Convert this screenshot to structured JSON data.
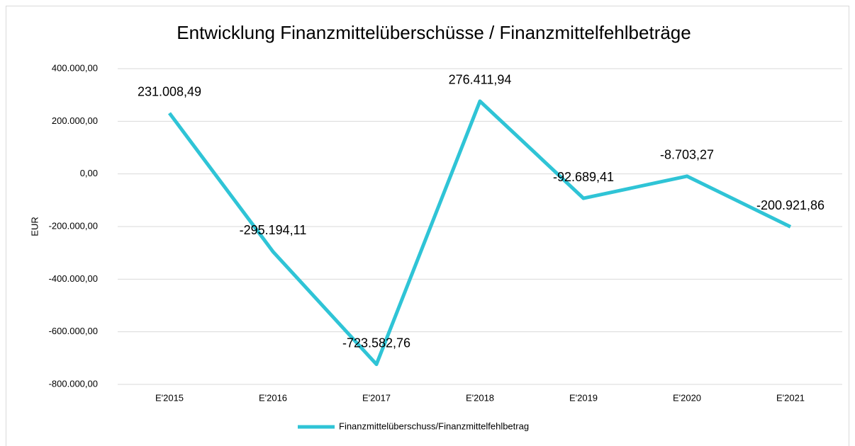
{
  "chart_data": {
    "type": "line",
    "title": "Entwicklung Finanzmittelüberschüsse / Finanzmittelfehlbeträge",
    "ylabel": "EUR",
    "categories": [
      "E'2015",
      "E'2016",
      "E'2017",
      "E'2018",
      "E'2019",
      "E'2020",
      "E'2021"
    ],
    "series": [
      {
        "name": "Finanzmittelüberschuss/Finanzmittelfehlbetrag",
        "color": "#2fc4d6",
        "values": [
          231008.49,
          -295194.11,
          -723582.76,
          276411.94,
          -92689.41,
          -8703.27,
          -200921.86
        ],
        "value_labels": [
          "231.008,49",
          "-295.194,11",
          "-723.582,76",
          "276.411,94",
          "-92.689,41",
          "-8.703,27",
          "-200.921,86"
        ]
      }
    ],
    "ylim": [
      -800000,
      400000
    ],
    "yticks": [
      {
        "value": -800000,
        "label": "-800.000,00"
      },
      {
        "value": -600000,
        "label": "-600.000,00"
      },
      {
        "value": -400000,
        "label": "-400.000,00"
      },
      {
        "value": -200000,
        "label": "-200.000,00"
      },
      {
        "value": 0,
        "label": "0,00"
      },
      {
        "value": 200000,
        "label": "200.000,00"
      },
      {
        "value": 400000,
        "label": "400.000,00"
      }
    ],
    "grid": true,
    "legend": "bottom"
  }
}
